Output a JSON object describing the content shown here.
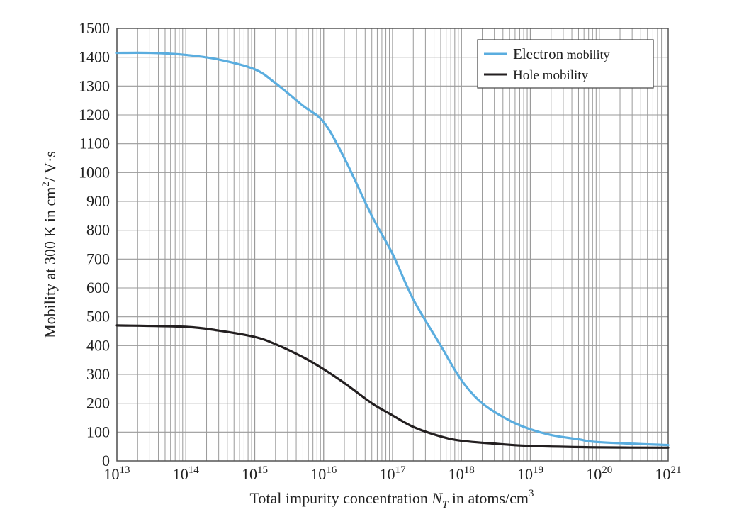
{
  "chart_data": {
    "type": "line",
    "xscale": "log",
    "xlim": [
      10000000000000.0,
      1e+21
    ],
    "ylim": [
      0,
      1500
    ],
    "grid": true,
    "legend_position": "top-right",
    "xlabel": {
      "prefix": "Total impurity concentration ",
      "var": "N",
      "sub": "T",
      "suffix": " in atoms/cm",
      "sup": "3"
    },
    "ylabel": {
      "prefix": "Mobility at 300 K in cm",
      "sup": "2",
      "suffix": "/ V·s"
    },
    "yticks": [
      "0",
      "100",
      "200",
      "300",
      "400",
      "500",
      "600",
      "700",
      "800",
      "900",
      "1000",
      "1100",
      "1200",
      "1300",
      "1400",
      "1500"
    ],
    "xticks": [
      {
        "base": "10",
        "exp": "13"
      },
      {
        "base": "10",
        "exp": "14"
      },
      {
        "base": "10",
        "exp": "15"
      },
      {
        "base": "10",
        "exp": "16"
      },
      {
        "base": "10",
        "exp": "17"
      },
      {
        "base": "10",
        "exp": "18"
      },
      {
        "base": "10",
        "exp": "19"
      },
      {
        "base": "10",
        "exp": "20"
      },
      {
        "base": "10",
        "exp": "21"
      }
    ],
    "series": [
      {
        "name_main": "Electron",
        "name_rest": " mobility",
        "color": "#5aaddf",
        "x": [
          10000000000000.0,
          30000000000000.0,
          100000000000000.0,
          300000000000000.0,
          1000000000000000.0,
          2000000000000000.0,
          5000000000000000.0,
          1e+16,
          2e+16,
          5e+16,
          1e+17,
          2e+17,
          5e+17,
          1e+18,
          2e+18,
          5e+18,
          1e+19,
          2e+19,
          5e+19,
          1e+20,
          1e+21
        ],
        "y": [
          1415,
          1415,
          1408,
          1392,
          1358,
          1310,
          1232,
          1175,
          1050,
          850,
          718,
          560,
          400,
          280,
          200,
          140,
          110,
          90,
          75,
          65,
          55
        ]
      },
      {
        "name_main": "Hole mobility",
        "name_rest": "",
        "color": "#231f20",
        "x": [
          10000000000000.0,
          100000000000000.0,
          300000000000000.0,
          1000000000000000.0,
          2000000000000000.0,
          5000000000000000.0,
          1e+16,
          2e+16,
          5e+16,
          1e+17,
          2e+17,
          5e+17,
          1e+18,
          3e+18,
          1e+19,
          1e+20,
          1e+21
        ],
        "y": [
          470,
          465,
          452,
          430,
          405,
          360,
          318,
          270,
          200,
          158,
          118,
          85,
          70,
          60,
          52,
          47,
          46
        ]
      }
    ]
  }
}
